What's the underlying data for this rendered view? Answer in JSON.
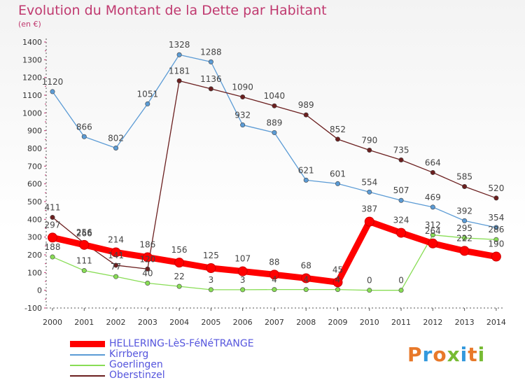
{
  "title": "Evolution du Montant de la Dette par Habitant",
  "subtitle": "(en €)",
  "brand": "Proxiti",
  "chart_data": {
    "type": "line",
    "x": [
      "2000",
      "2001",
      "2002",
      "2003",
      "2004",
      "2005",
      "2006",
      "2007",
      "2008",
      "2009",
      "2010",
      "2011",
      "2012",
      "2013",
      "2014"
    ],
    "ylim": [
      -100,
      1400
    ],
    "yticks": [
      -100,
      0,
      100,
      200,
      300,
      400,
      500,
      600,
      700,
      800,
      900,
      1000,
      1100,
      1200,
      1300,
      1400
    ],
    "grid": false,
    "legend_position": "bottom-left",
    "series": [
      {
        "name": "HELLERING-LèS-FéNéTRANGE",
        "color": "#ff0000",
        "values": [
          297,
          256,
          214,
          186,
          156,
          125,
          107,
          88,
          68,
          45,
          387,
          324,
          264,
          222,
          190
        ]
      },
      {
        "name": "Kirrberg",
        "color": "#5b9bd5",
        "values": [
          1120,
          866,
          802,
          1051,
          1328,
          1288,
          932,
          889,
          621,
          601,
          554,
          507,
          469,
          392,
          354
        ]
      },
      {
        "name": "Goerlingen",
        "color": "#88dd55",
        "values": [
          188,
          111,
          77,
          40,
          22,
          3,
          3,
          4,
          4,
          4,
          0,
          0,
          312,
          295,
          286
        ]
      },
      {
        "name": "Oberstinzel",
        "color": "#6b1f1f",
        "values": [
          411,
          266,
          141,
          120,
          1181,
          1136,
          1090,
          1040,
          989,
          852,
          790,
          735,
          664,
          585,
          520
        ]
      }
    ]
  }
}
